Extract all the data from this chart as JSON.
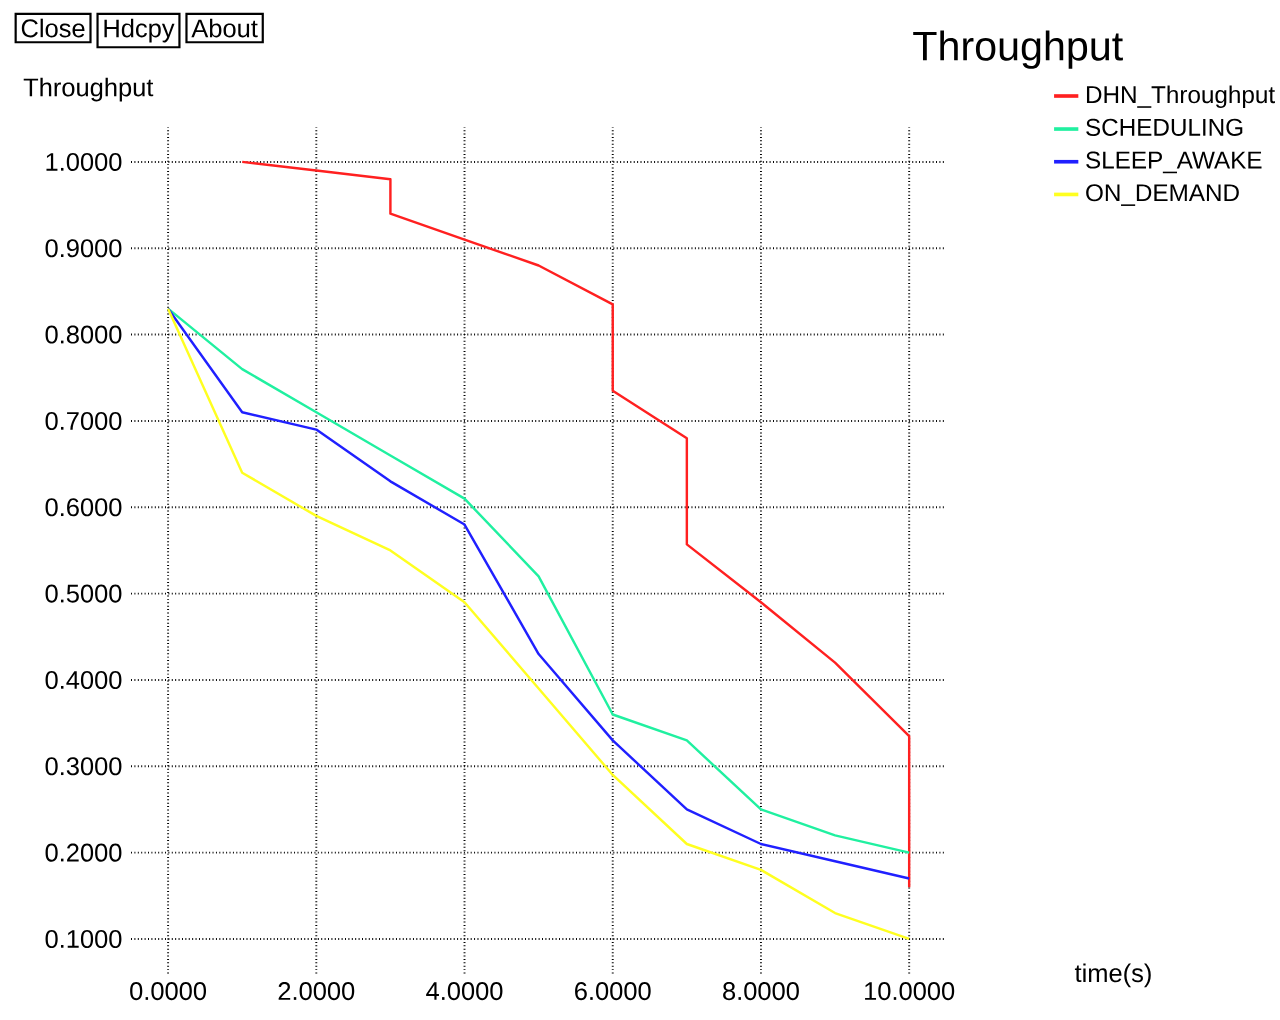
{
  "chart_data": {
    "type": "line",
    "title": "Throughput",
    "ylabel": "Throughput",
    "xlabel": "time(s)",
    "annotations": [
      "Close",
      "Hdcpy",
      "About"
    ],
    "xlim": [
      -0.5,
      10.5
    ],
    "ylim": [
      0.06,
      1.04
    ],
    "xticks": [
      {
        "value": 0,
        "label": "0.0000"
      },
      {
        "value": 2,
        "label": "2.0000"
      },
      {
        "value": 4,
        "label": "4.0000"
      },
      {
        "value": 6,
        "label": "6.0000"
      },
      {
        "value": 8,
        "label": "8.0000"
      },
      {
        "value": 10,
        "label": "10.0000"
      }
    ],
    "yticks": [
      {
        "value": 0.1,
        "label": "0.1000"
      },
      {
        "value": 0.2,
        "label": "0.2000"
      },
      {
        "value": 0.3,
        "label": "0.3000"
      },
      {
        "value": 0.4,
        "label": "0.4000"
      },
      {
        "value": 0.5,
        "label": "0.5000"
      },
      {
        "value": 0.6,
        "label": "0.6000"
      },
      {
        "value": 0.7,
        "label": "0.7000"
      },
      {
        "value": 0.8,
        "label": "0.8000"
      },
      {
        "value": 0.9,
        "label": "0.9000"
      },
      {
        "value": 1.0,
        "label": "1.0000"
      }
    ],
    "grid": true,
    "legend": "top right",
    "marker": "none",
    "line_style": "solid",
    "series": [
      {
        "name": "DHN_Throughput",
        "color": "#ff2020",
        "x": [
          1,
          2,
          3,
          3,
          4,
          5,
          6,
          6,
          7,
          7,
          8,
          9,
          10,
          10
        ],
        "values": [
          1.0,
          0.99,
          0.98,
          0.94,
          0.91,
          0.88,
          0.835,
          0.735,
          0.68,
          0.557,
          0.49,
          0.42,
          0.335,
          0.16
        ]
      },
      {
        "name": "SCHEDULING",
        "color": "#20f0a0",
        "x": [
          0,
          1,
          2,
          3,
          4,
          5,
          6,
          7,
          8,
          9,
          10
        ],
        "values": [
          0.83,
          0.76,
          0.71,
          0.66,
          0.61,
          0.52,
          0.36,
          0.33,
          0.25,
          0.22,
          0.2
        ]
      },
      {
        "name": "SLEEP_AWAKE",
        "color": "#2020ff",
        "x": [
          0,
          1,
          2,
          3,
          4,
          5,
          6,
          7,
          8,
          9,
          10
        ],
        "values": [
          0.83,
          0.71,
          0.69,
          0.63,
          0.58,
          0.43,
          0.33,
          0.25,
          0.21,
          0.19,
          0.17
        ]
      },
      {
        "name": "ON_DEMAND",
        "color": "#ffff20",
        "x": [
          0,
          1,
          2,
          3,
          4,
          5,
          6,
          7,
          8,
          9,
          10
        ],
        "values": [
          0.83,
          0.64,
          0.59,
          0.55,
          0.49,
          0.39,
          0.29,
          0.21,
          0.18,
          0.13,
          0.1
        ]
      }
    ]
  }
}
